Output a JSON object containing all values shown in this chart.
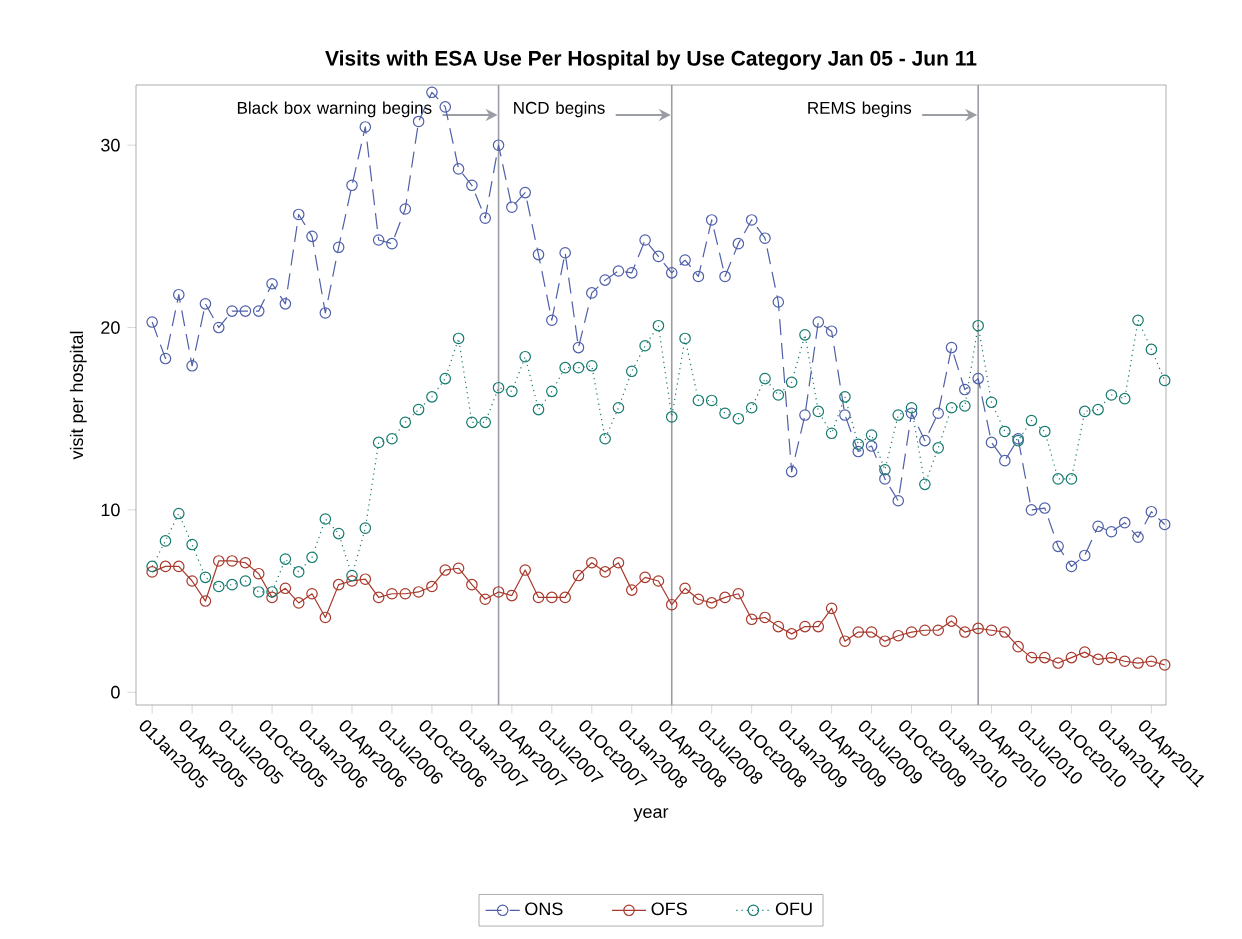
{
  "chart_data": {
    "type": "line",
    "title": "Visits with ESA Use Per Hospital by Use Category Jan 05 - Jun 11",
    "xlabel": "year",
    "ylabel": "visit per hospital",
    "x": [
      "2005-01",
      "2005-02",
      "2005-03",
      "2005-04",
      "2005-05",
      "2005-06",
      "2005-07",
      "2005-08",
      "2005-09",
      "2005-10",
      "2005-11",
      "2005-12",
      "2006-01",
      "2006-02",
      "2006-03",
      "2006-04",
      "2006-05",
      "2006-06",
      "2006-07",
      "2006-08",
      "2006-09",
      "2006-10",
      "2006-11",
      "2006-12",
      "2007-01",
      "2007-02",
      "2007-03",
      "2007-04",
      "2007-05",
      "2007-06",
      "2007-07",
      "2007-08",
      "2007-09",
      "2007-10",
      "2007-11",
      "2007-12",
      "2008-01",
      "2008-02",
      "2008-03",
      "2008-04",
      "2008-05",
      "2008-06",
      "2008-07",
      "2008-08",
      "2008-09",
      "2008-10",
      "2008-11",
      "2008-12",
      "2009-01",
      "2009-02",
      "2009-03",
      "2009-04",
      "2009-05",
      "2009-06",
      "2009-07",
      "2009-08",
      "2009-09",
      "2009-10",
      "2009-11",
      "2009-12",
      "2010-01",
      "2010-02",
      "2010-03",
      "2010-04",
      "2010-05",
      "2010-06",
      "2010-07",
      "2010-08",
      "2010-09",
      "2010-10",
      "2010-11",
      "2010-12",
      "2011-01",
      "2011-02",
      "2011-03",
      "2011-04",
      "2011-05"
    ],
    "series": [
      {
        "name": "ONS",
        "color": "#4f5fa8",
        "line_style": "dashed",
        "values": [
          20.3,
          18.3,
          21.8,
          17.9,
          21.3,
          20.0,
          20.9,
          20.9,
          20.9,
          22.4,
          21.3,
          26.2,
          25.0,
          20.8,
          24.4,
          27.8,
          31.0,
          24.8,
          24.6,
          26.5,
          31.3,
          32.9,
          32.1,
          28.7,
          27.8,
          26.0,
          30.0,
          26.6,
          27.4,
          24.0,
          20.4,
          24.1,
          18.9,
          21.9,
          22.6,
          23.1,
          23.0,
          24.8,
          23.9,
          23.0,
          23.7,
          22.8,
          25.9,
          22.8,
          24.6,
          25.9,
          24.9,
          21.4,
          12.1,
          15.2,
          20.3,
          19.8,
          15.2,
          13.2,
          13.5,
          11.7,
          10.5,
          15.3,
          13.8,
          15.3,
          18.9,
          16.6,
          17.2,
          13.7,
          12.7,
          13.9,
          10.0,
          10.1,
          8.0,
          6.9,
          7.5,
          9.1,
          8.8,
          9.3,
          8.5,
          9.9,
          9.2
        ]
      },
      {
        "name": "OFS",
        "color": "#a8392c",
        "line_style": "solid",
        "values": [
          6.6,
          6.9,
          6.9,
          6.1,
          5.0,
          7.2,
          7.2,
          7.1,
          6.5,
          5.2,
          5.7,
          4.9,
          5.4,
          4.1,
          5.9,
          6.1,
          6.2,
          5.2,
          5.4,
          5.4,
          5.5,
          5.8,
          6.7,
          6.8,
          5.9,
          5.1,
          5.5,
          5.3,
          6.7,
          5.2,
          5.2,
          5.2,
          6.4,
          7.1,
          6.6,
          7.1,
          5.6,
          6.3,
          6.1,
          4.8,
          5.7,
          5.1,
          4.9,
          5.2,
          5.4,
          4.0,
          4.1,
          3.6,
          3.2,
          3.6,
          3.6,
          4.6,
          2.8,
          3.3,
          3.3,
          2.8,
          3.1,
          3.3,
          3.4,
          3.4,
          3.9,
          3.3,
          3.5,
          3.4,
          3.3,
          2.5,
          1.9,
          1.9,
          1.6,
          1.9,
          2.2,
          1.8,
          1.9,
          1.7,
          1.6,
          1.7,
          1.5
        ]
      },
      {
        "name": "OFU",
        "color": "#167a6e",
        "line_style": "dotted",
        "values": [
          6.9,
          8.3,
          9.8,
          8.1,
          6.3,
          5.8,
          5.9,
          6.1,
          5.5,
          5.5,
          7.3,
          6.6,
          7.4,
          9.5,
          8.7,
          6.4,
          9.0,
          13.7,
          13.9,
          14.8,
          15.5,
          16.2,
          17.2,
          19.4,
          14.8,
          14.8,
          16.7,
          16.5,
          18.4,
          15.5,
          16.5,
          17.8,
          17.8,
          17.9,
          13.9,
          15.6,
          17.6,
          19.0,
          20.1,
          15.1,
          19.4,
          16.0,
          16.0,
          15.3,
          15.0,
          15.6,
          17.2,
          16.3,
          17.0,
          19.6,
          15.4,
          14.2,
          16.2,
          13.6,
          14.1,
          12.2,
          15.2,
          15.6,
          11.4,
          13.4,
          15.6,
          15.7,
          20.1,
          15.9,
          14.3,
          13.8,
          14.9,
          14.3,
          11.7,
          11.7,
          15.4,
          15.5,
          16.3,
          16.1,
          20.4,
          18.8,
          17.1
        ]
      }
    ],
    "marker": "circle",
    "legend": "bottom",
    "grid": false,
    "xlim": [
      "2004-11-25",
      "2011-05-04"
    ],
    "xticks": [
      {
        "value": "2005-01-01",
        "label": "01Jan2005"
      },
      {
        "value": "2005-04-01",
        "label": "01Apr2005"
      },
      {
        "value": "2005-07-01",
        "label": "01Jul2005"
      },
      {
        "value": "2005-10-01",
        "label": "01Oct2005"
      },
      {
        "value": "2006-01-01",
        "label": "01Jan2006"
      },
      {
        "value": "2006-04-01",
        "label": "01Apr2006"
      },
      {
        "value": "2006-07-01",
        "label": "01Jul2006"
      },
      {
        "value": "2006-10-01",
        "label": "01Oct2006"
      },
      {
        "value": "2007-01-01",
        "label": "01Jan2007"
      },
      {
        "value": "2007-04-01",
        "label": "01Apr2007"
      },
      {
        "value": "2007-07-01",
        "label": "01Jul2007"
      },
      {
        "value": "2007-10-01",
        "label": "01Oct2007"
      },
      {
        "value": "2008-01-01",
        "label": "01Jan2008"
      },
      {
        "value": "2008-04-01",
        "label": "01Apr2008"
      },
      {
        "value": "2008-07-01",
        "label": "01Jul2008"
      },
      {
        "value": "2008-10-01",
        "label": "01Oct2008"
      },
      {
        "value": "2009-01-01",
        "label": "01Jan2009"
      },
      {
        "value": "2009-04-01",
        "label": "01Apr2009"
      },
      {
        "value": "2009-07-01",
        "label": "01Jul2009"
      },
      {
        "value": "2009-10-01",
        "label": "01Oct2009"
      },
      {
        "value": "2010-01-01",
        "label": "01Jan2010"
      },
      {
        "value": "2010-04-01",
        "label": "01Apr2010"
      },
      {
        "value": "2010-07-01",
        "label": "01Jul2010"
      },
      {
        "value": "2010-10-01",
        "label": "01Oct2010"
      },
      {
        "value": "2011-01-01",
        "label": "01Jan2011"
      },
      {
        "value": "2011-04-01",
        "label": "01Apr2011"
      }
    ],
    "ylim": [
      -0.7,
      33.3
    ],
    "yticks": [
      0,
      10,
      20,
      30
    ],
    "ref_lines": [
      {
        "axis": "x",
        "value": "2007-03",
        "label": "Black box warning begins",
        "color": "#9a9ea4"
      },
      {
        "axis": "x",
        "value": "2008-04",
        "label": "NCD begins",
        "color": "#9a9ea4"
      },
      {
        "axis": "x",
        "value": "2010-03",
        "label": "REMS begins",
        "color": "#9a9ea4"
      }
    ]
  }
}
